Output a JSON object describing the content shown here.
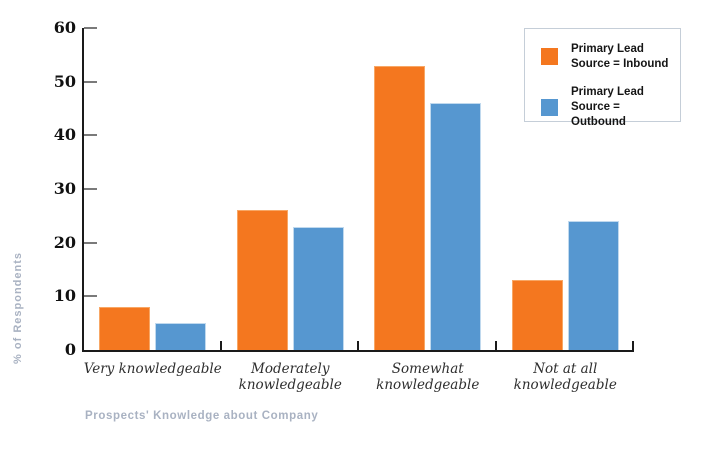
{
  "chart_data": {
    "type": "bar",
    "title": "",
    "categories": [
      "Very knowledgeable",
      "Moderately knowledgeable",
      "Somewhat knowledgeable",
      "Not at all knowledgeable"
    ],
    "series": [
      {
        "key": "inbound",
        "name": "Primary Lead Source = Inbound",
        "color": "#f4771f",
        "edge_color": "#f8a765",
        "values": [
          8,
          26,
          53,
          13
        ]
      },
      {
        "key": "outbound",
        "name": "Primary Lead Source = Outbound",
        "color": "#5697d0",
        "edge_color": "#c0d9ee",
        "values": [
          5,
          23,
          46,
          24
        ]
      }
    ],
    "xlabel": "Prospects' Knowledge about Company",
    "ylabel": "% of Respondents",
    "ylim": [
      0,
      60
    ],
    "ytick_step": 10,
    "yticks": [
      0,
      10,
      20,
      30,
      40,
      50,
      60
    ],
    "grid": false,
    "legend_position": "top-right"
  },
  "legend": {
    "items": [
      {
        "key": "inbound",
        "line1": "Primary Lead",
        "line2": "Source = Inbound",
        "color": "#f4771f"
      },
      {
        "key": "outbound",
        "line1": "Primary Lead",
        "line2": "Source = Outbound",
        "color": "#5697d0"
      }
    ]
  },
  "colors": {
    "axis": "#1a1a1a",
    "y_tick": "#7a7a7a",
    "x_tick": "#1a1a1a",
    "axis_title": "#a9b2c2",
    "tick_label": "#111111",
    "category_label": "#2f2f2f",
    "legend_border": "#c5ced8",
    "background": "#ffffff"
  }
}
